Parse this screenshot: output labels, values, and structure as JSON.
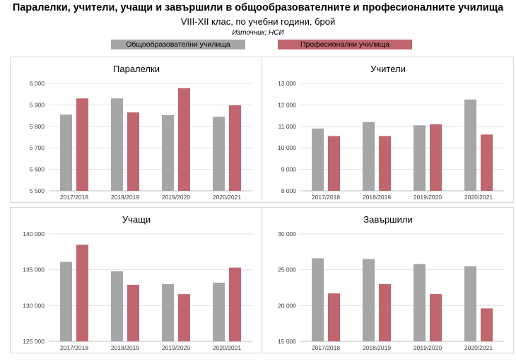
{
  "header": {
    "title": "Паралелки, учители, учащи и завършили в общообразователните и професионалните училища",
    "subtitle": "VIII-XII клас, по учебни години, брой",
    "source": "Източник: НСИ"
  },
  "colors": {
    "general": "#a6a6a6",
    "vocational": "#c0666e"
  },
  "legend": {
    "general": "Общообразователни училища",
    "vocational": "Професионални училища"
  },
  "chart_data": [
    {
      "type": "bar",
      "title": "Паралелки",
      "categories": [
        "2017/2018",
        "2018/2019",
        "2019/2020",
        "2020/2021"
      ],
      "series": [
        {
          "name": "Общообразователни училища",
          "values": [
            5855,
            5930,
            5852,
            5845
          ]
        },
        {
          "name": "Професионални училища",
          "values": [
            5930,
            5865,
            5978,
            5898
          ]
        }
      ],
      "ylim": [
        5500,
        6000
      ],
      "yticks": [
        5500,
        5600,
        5700,
        5800,
        5900,
        6000
      ],
      "ytick_labels": [
        "5 500",
        "5 600",
        "5 700",
        "5 800",
        "5 900",
        "6 000"
      ]
    },
    {
      "type": "bar",
      "title": "Учители",
      "categories": [
        "2017/2018",
        "2018/2019",
        "2019/2020",
        "2020/2021"
      ],
      "series": [
        {
          "name": "Общообразователни училища",
          "values": [
            10900,
            11200,
            11050,
            12250
          ]
        },
        {
          "name": "Професионални училища",
          "values": [
            10550,
            10550,
            11100,
            10620
          ]
        }
      ],
      "ylim": [
        8000,
        13000
      ],
      "yticks": [
        8000,
        9000,
        10000,
        11000,
        12000,
        13000
      ],
      "ytick_labels": [
        "8 000",
        "9 000",
        "10 000",
        "11 000",
        "12 000",
        "13 000"
      ]
    },
    {
      "type": "bar",
      "title": "Учащи",
      "categories": [
        "2017/2018",
        "2018/2019",
        "2019/2020",
        "2020/2021"
      ],
      "series": [
        {
          "name": "Общообразователни училища",
          "values": [
            136100,
            134800,
            133000,
            133200
          ]
        },
        {
          "name": "Професионални училища",
          "values": [
            138500,
            132900,
            131600,
            135300
          ]
        }
      ],
      "ylim": [
        125000,
        140000
      ],
      "yticks": [
        125000,
        130000,
        135000,
        140000
      ],
      "ytick_labels": [
        "125 000",
        "130 000",
        "135 000",
        "140 000"
      ]
    },
    {
      "type": "bar",
      "title": "Завършили",
      "categories": [
        "2017/2018",
        "2018/2019",
        "2019/2020",
        "2020/2021"
      ],
      "series": [
        {
          "name": "Общообразователни училища",
          "values": [
            26600,
            26500,
            25800,
            25500
          ]
        },
        {
          "name": "Професионални училища",
          "values": [
            21700,
            23000,
            21600,
            19600
          ]
        }
      ],
      "ylim": [
        15000,
        30000
      ],
      "yticks": [
        15000,
        20000,
        25000,
        30000
      ],
      "ytick_labels": [
        "15 000",
        "20 000",
        "25 000",
        "30 000"
      ]
    }
  ]
}
